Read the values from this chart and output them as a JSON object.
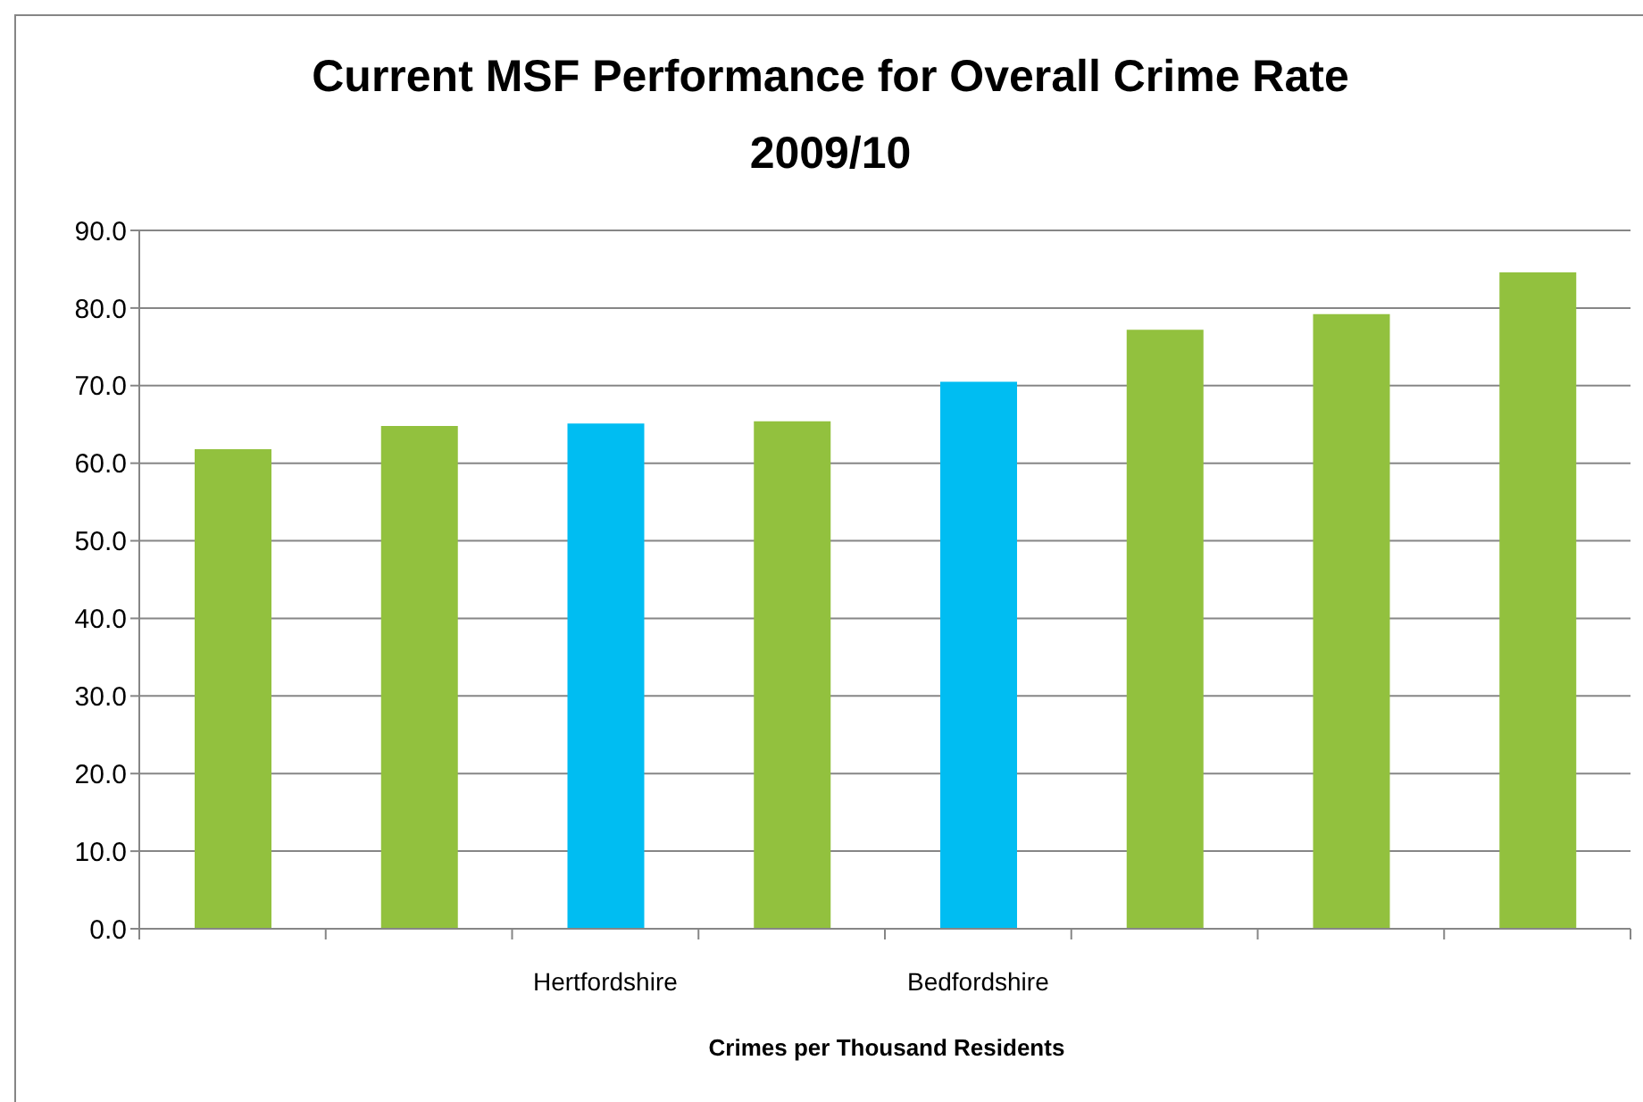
{
  "chart_data": {
    "type": "bar",
    "title": "Current MSF Performance for Overall Crime Rate 2009/10",
    "xlabel": "Crimes per Thousand Residents",
    "categories": [
      null,
      null,
      "Hertfordshire",
      null,
      "Bedfordshire",
      null,
      null,
      null
    ],
    "values": [
      61.8,
      64.8,
      65.1,
      65.4,
      70.5,
      77.2,
      79.2,
      84.6
    ],
    "colors": [
      "#92c13e",
      "#92c13e",
      "#00bdf2",
      "#92c13e",
      "#00bdf2",
      "#92c13e",
      "#92c13e",
      "#92c13e"
    ],
    "ylim": [
      0,
      90
    ],
    "yticks": [
      {
        "value": 0,
        "label": "0.0"
      },
      {
        "value": 10,
        "label": "10.0"
      },
      {
        "value": 20,
        "label": "20.0"
      },
      {
        "value": 30,
        "label": "30.0"
      },
      {
        "value": 40,
        "label": "40.0"
      },
      {
        "value": 50,
        "label": "50.0"
      },
      {
        "value": 60,
        "label": "60.0"
      },
      {
        "value": 70,
        "label": "70.0"
      },
      {
        "value": 80,
        "label": "80.0"
      },
      {
        "value": 90,
        "label": "90.0"
      }
    ],
    "grid": "y"
  }
}
